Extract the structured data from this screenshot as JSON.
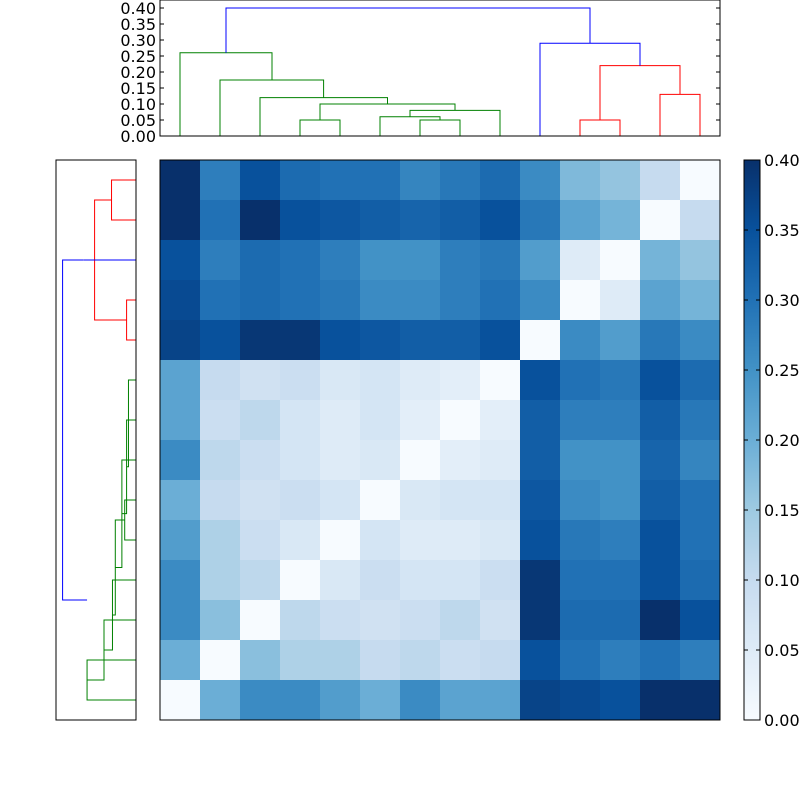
{
  "chart_data": {
    "type": "heatmap",
    "title": "",
    "xlabel": "",
    "ylabel": "",
    "n": 14,
    "matrix": [
      [
        0.4,
        0.28,
        0.35,
        0.31,
        0.3,
        0.3,
        0.27,
        0.29,
        0.31,
        0.26,
        0.18,
        0.16,
        0.1,
        0.0
      ],
      [
        0.4,
        0.3,
        0.4,
        0.35,
        0.34,
        0.33,
        0.32,
        0.33,
        0.35,
        0.29,
        0.22,
        0.19,
        0.0,
        0.1
      ],
      [
        0.35,
        0.28,
        0.31,
        0.3,
        0.28,
        0.25,
        0.25,
        0.28,
        0.29,
        0.23,
        0.05,
        0.0,
        0.19,
        0.16
      ],
      [
        0.36,
        0.3,
        0.31,
        0.3,
        0.29,
        0.26,
        0.26,
        0.28,
        0.3,
        0.26,
        0.0,
        0.05,
        0.22,
        0.19
      ],
      [
        0.37,
        0.35,
        0.39,
        0.39,
        0.35,
        0.34,
        0.33,
        0.33,
        0.35,
        0.0,
        0.26,
        0.23,
        0.29,
        0.26
      ],
      [
        0.22,
        0.1,
        0.08,
        0.09,
        0.06,
        0.07,
        0.05,
        0.04,
        0.0,
        0.35,
        0.3,
        0.29,
        0.35,
        0.31
      ],
      [
        0.22,
        0.09,
        0.11,
        0.07,
        0.05,
        0.07,
        0.04,
        0.0,
        0.04,
        0.33,
        0.28,
        0.28,
        0.33,
        0.29
      ],
      [
        0.26,
        0.11,
        0.09,
        0.07,
        0.05,
        0.06,
        0.0,
        0.04,
        0.05,
        0.33,
        0.25,
        0.25,
        0.32,
        0.27
      ],
      [
        0.2,
        0.1,
        0.08,
        0.09,
        0.07,
        0.0,
        0.06,
        0.07,
        0.07,
        0.34,
        0.26,
        0.25,
        0.33,
        0.3
      ],
      [
        0.23,
        0.13,
        0.09,
        0.06,
        0.0,
        0.07,
        0.05,
        0.05,
        0.06,
        0.35,
        0.29,
        0.28,
        0.35,
        0.3
      ],
      [
        0.26,
        0.13,
        0.11,
        0.0,
        0.06,
        0.09,
        0.07,
        0.07,
        0.09,
        0.39,
        0.3,
        0.3,
        0.35,
        0.31
      ],
      [
        0.26,
        0.17,
        0.0,
        0.11,
        0.09,
        0.08,
        0.09,
        0.11,
        0.08,
        0.39,
        0.31,
        0.31,
        0.4,
        0.35
      ],
      [
        0.2,
        0.0,
        0.17,
        0.13,
        0.13,
        0.1,
        0.11,
        0.09,
        0.1,
        0.35,
        0.3,
        0.28,
        0.3,
        0.28
      ],
      [
        0.0,
        0.2,
        0.26,
        0.26,
        0.23,
        0.2,
        0.26,
        0.22,
        0.22,
        0.37,
        0.36,
        0.35,
        0.4,
        0.4
      ]
    ],
    "colormap": [
      "#f7fbff",
      "#deebf7",
      "#c6dbef",
      "#9ecae1",
      "#6baed6",
      "#4292c6",
      "#2171b5",
      "#08519c",
      "#08306b"
    ],
    "colorbar": {
      "vmin": 0.0,
      "vmax": 0.4,
      "ticks": [
        "0.00",
        "0.05",
        "0.10",
        "0.15",
        "0.20",
        "0.25",
        "0.30",
        "0.35",
        "0.40"
      ]
    },
    "dendrogram_top": {
      "yticks": [
        "0.00",
        "0.05",
        "0.10",
        "0.15",
        "0.20",
        "0.25",
        "0.30",
        "0.35",
        "0.40"
      ],
      "ymax": 0.4,
      "links": [
        {
          "a": 3,
          "b": 4,
          "ha": 0,
          "hb": 0,
          "h": 0.05,
          "color": "#008000"
        },
        {
          "a": 6,
          "b": 7,
          "ha": 0,
          "hb": 0,
          "h": 0.05,
          "color": "#008000"
        },
        {
          "a": 5,
          "b": 6.5,
          "ha": 0,
          "hb": 0.05,
          "h": 0.06,
          "color": "#008000"
        },
        {
          "a": 5.75,
          "b": 8,
          "ha": 0.06,
          "hb": 0,
          "h": 0.08,
          "color": "#008000"
        },
        {
          "a": 3.5,
          "b": 6.875,
          "ha": 0.05,
          "hb": 0.08,
          "h": 0.1,
          "color": "#008000"
        },
        {
          "a": 2,
          "b": 5.1875,
          "ha": 0,
          "hb": 0.1,
          "h": 0.12,
          "color": "#008000"
        },
        {
          "a": 1,
          "b": 3.59,
          "ha": 0,
          "hb": 0.12,
          "h": 0.175,
          "color": "#008000"
        },
        {
          "a": 0,
          "b": 2.3,
          "ha": 0,
          "hb": 0.175,
          "h": 0.26,
          "color": "#008000"
        },
        {
          "a": 10,
          "b": 11,
          "ha": 0,
          "hb": 0,
          "h": 0.05,
          "color": "#ff0000"
        },
        {
          "a": 12,
          "b": 13,
          "ha": 0,
          "hb": 0,
          "h": 0.13,
          "color": "#ff0000"
        },
        {
          "a": 10.5,
          "b": 12.5,
          "ha": 0.05,
          "hb": 0.13,
          "h": 0.22,
          "color": "#ff0000"
        },
        {
          "a": 9,
          "b": 11.5,
          "ha": 0,
          "hb": 0.22,
          "h": 0.29,
          "color": "#0000ff"
        },
        {
          "a": 1.15,
          "b": 10.25,
          "ha": 0.26,
          "hb": 0.29,
          "h": 0.4,
          "color": "#0000ff"
        }
      ]
    },
    "dendrogram_left": {
      "hmax": 0.4,
      "links": [
        {
          "a": 12,
          "b": 13,
          "ha": 0,
          "hb": 0,
          "h": 0.26,
          "color": "#008000"
        },
        {
          "a": 11,
          "b": 12.5,
          "ha": 0,
          "hb": 0.26,
          "h": 0.17,
          "color": "#008000"
        },
        {
          "a": 10,
          "b": 11.75,
          "ha": 0,
          "hb": 0.17,
          "h": 0.125,
          "color": "#008000"
        },
        {
          "a": 8,
          "b": 9,
          "ha": 0,
          "hb": 0,
          "h": 0.06,
          "color": "#008000"
        },
        {
          "a": 8.5,
          "b": 10.875,
          "ha": 0.06,
          "hb": 0.125,
          "h": 0.11,
          "color": "#008000"
        },
        {
          "a": 7,
          "b": 9.6875,
          "ha": 0,
          "hb": 0.11,
          "h": 0.075,
          "color": "#008000"
        },
        {
          "a": 6,
          "b": 8.34,
          "ha": 0,
          "hb": 0.075,
          "h": 0.05,
          "color": "#008000"
        },
        {
          "a": 5,
          "b": 7.17,
          "ha": 0,
          "hb": 0.05,
          "h": 0.04,
          "color": "#008000"
        },
        {
          "a": 3,
          "b": 4,
          "ha": 0,
          "hb": 0,
          "h": 0.05,
          "color": "#ff0000"
        },
        {
          "a": 0,
          "b": 1,
          "ha": 0,
          "hb": 0,
          "h": 0.13,
          "color": "#ff0000"
        },
        {
          "a": 0.5,
          "b": 3.5,
          "ha": 0.13,
          "hb": 0.05,
          "h": 0.22,
          "color": "#ff0000"
        },
        {
          "a": 2,
          "b": 2,
          "ha": 0,
          "hb": 0.22,
          "h": 0.28,
          "color": "#0000ff"
        },
        {
          "a": 2,
          "b": 10.5,
          "ha": 0.28,
          "hb": 0.26,
          "h": 0.39,
          "color": "#0000ff"
        }
      ]
    }
  }
}
